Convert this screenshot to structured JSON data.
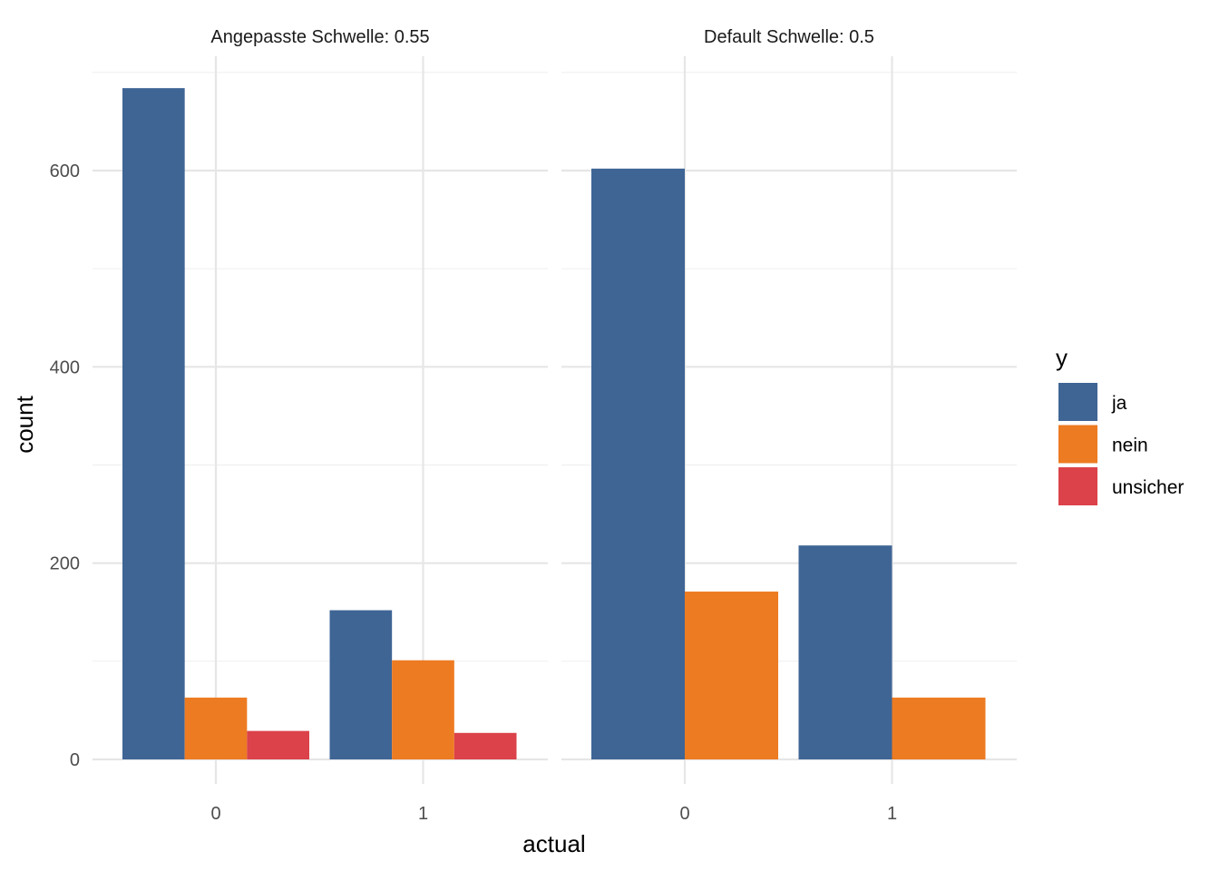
{
  "chart_data": {
    "type": "bar",
    "xlabel": "actual",
    "ylabel": "count",
    "ylim": [
      0,
      720
    ],
    "yticks": [
      0,
      200,
      400,
      600
    ],
    "categories": [
      "0",
      "1"
    ],
    "legend": {
      "title": "y",
      "placement": "right",
      "entries": [
        {
          "name": "ja",
          "color": "#3f6595"
        },
        {
          "name": "nein",
          "color": "#ed7b22"
        },
        {
          "name": "unsicher",
          "color": "#db424a"
        }
      ]
    },
    "panels": [
      {
        "title": "Angepasste Schwelle: 0.55",
        "series": [
          {
            "name": "ja",
            "values": [
              684,
              152
            ]
          },
          {
            "name": "nein",
            "values": [
              63,
              101
            ]
          },
          {
            "name": "unsicher",
            "values": [
              29,
              27
            ]
          }
        ]
      },
      {
        "title": "Default Schwelle: 0.5",
        "series": [
          {
            "name": "ja",
            "values": [
              602,
              218
            ]
          },
          {
            "name": "nein",
            "values": [
              171,
              63
            ]
          }
        ]
      }
    ]
  }
}
